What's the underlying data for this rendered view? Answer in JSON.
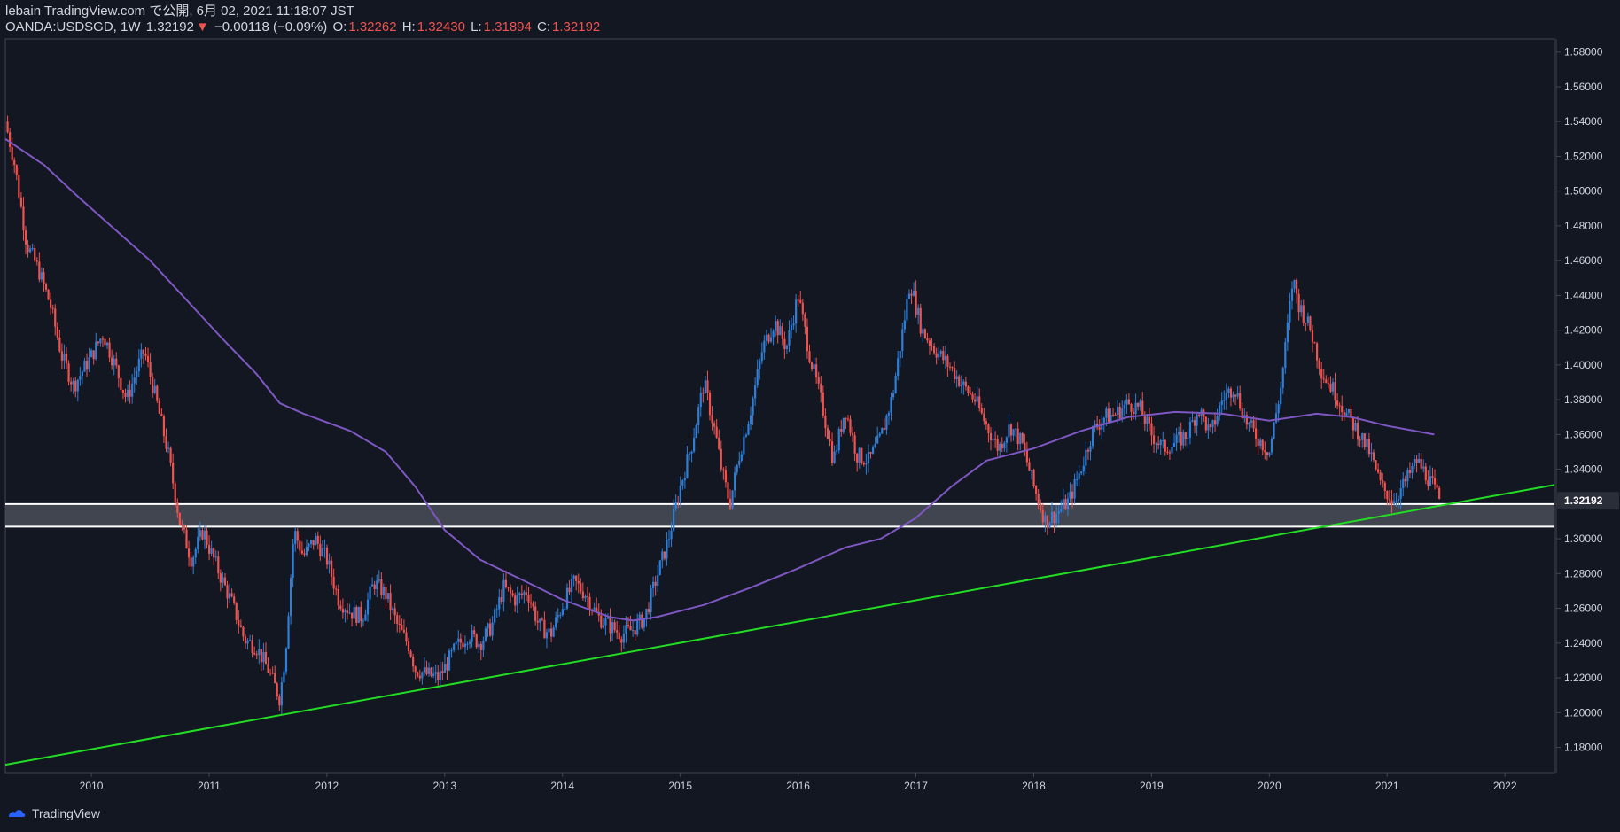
{
  "header": {
    "publisher": "lebain TradingView.com で公開, 6月 02, 2021 11:18:07 JST",
    "symbol": "OANDA:USDSGD, 1W",
    "last": "1.32192",
    "change_arrow": "▼",
    "change": "−0.00118 (−0.09%)",
    "o_label": "O:",
    "o_value": "1.32262",
    "h_label": "H:",
    "h_value": "1.32430",
    "l_label": "L:",
    "l_value": "1.31894",
    "c_label": "C:",
    "c_value": "1.32192"
  },
  "footer": {
    "brand": "TradingView"
  },
  "colors": {
    "background": "#131722",
    "up": "#2f7fd8",
    "down": "#ef5350",
    "ma": "#7e57c2",
    "trendline": "#22dd22",
    "zone_border": "#ffffff",
    "zone_fill": "#4a4d57"
  },
  "chart_data": {
    "type": "candlestick",
    "x_unit": "year",
    "xlim": [
      2009.27,
      2022.42
    ],
    "ylim": [
      1.1655,
      1.5875
    ],
    "x_ticks": [
      "2010",
      "2011",
      "2012",
      "2013",
      "2014",
      "2015",
      "2016",
      "2017",
      "2018",
      "2019",
      "2020",
      "2021",
      "2022"
    ],
    "x_tick_values": [
      2010,
      2011,
      2012,
      2013,
      2014,
      2015,
      2016,
      2017,
      2018,
      2019,
      2020,
      2021,
      2022
    ],
    "y_ticks": [
      "1.18000",
      "1.20000",
      "1.22000",
      "1.24000",
      "1.26000",
      "1.28000",
      "1.30000",
      "1.32000",
      "1.34000",
      "1.36000",
      "1.38000",
      "1.40000",
      "1.42000",
      "1.44000",
      "1.46000",
      "1.48000",
      "1.50000",
      "1.52000",
      "1.54000",
      "1.56000",
      "1.58000"
    ],
    "y_tick_values": [
      1.18,
      1.2,
      1.22,
      1.24,
      1.26,
      1.28,
      1.3,
      1.32,
      1.34,
      1.36,
      1.38,
      1.4,
      1.42,
      1.44,
      1.46,
      1.48,
      1.5,
      1.52,
      1.54,
      1.56,
      1.58
    ],
    "last_price_label": "1.32192",
    "last_price": 1.32192,
    "price_path": [
      [
        2009.27,
        1.54
      ],
      [
        2009.35,
        1.515
      ],
      [
        2009.45,
        1.47
      ],
      [
        2009.55,
        1.455
      ],
      [
        2009.65,
        1.435
      ],
      [
        2009.75,
        1.405
      ],
      [
        2009.85,
        1.388
      ],
      [
        2010.0,
        1.405
      ],
      [
        2010.1,
        1.418
      ],
      [
        2010.2,
        1.4
      ],
      [
        2010.3,
        1.38
      ],
      [
        2010.4,
        1.4
      ],
      [
        2010.45,
        1.408
      ],
      [
        2010.55,
        1.38
      ],
      [
        2010.65,
        1.35
      ],
      [
        2010.75,
        1.31
      ],
      [
        2010.85,
        1.288
      ],
      [
        2010.95,
        1.305
      ],
      [
        2011.0,
        1.295
      ],
      [
        2011.1,
        1.278
      ],
      [
        2011.2,
        1.262
      ],
      [
        2011.3,
        1.242
      ],
      [
        2011.4,
        1.238
      ],
      [
        2011.5,
        1.225
      ],
      [
        2011.6,
        1.208
      ],
      [
        2011.65,
        1.236
      ],
      [
        2011.72,
        1.305
      ],
      [
        2011.8,
        1.29
      ],
      [
        2011.9,
        1.3
      ],
      [
        2012.0,
        1.288
      ],
      [
        2012.1,
        1.265
      ],
      [
        2012.2,
        1.258
      ],
      [
        2012.3,
        1.255
      ],
      [
        2012.4,
        1.275
      ],
      [
        2012.5,
        1.268
      ],
      [
        2012.6,
        1.25
      ],
      [
        2012.7,
        1.238
      ],
      [
        2012.75,
        1.225
      ],
      [
        2012.85,
        1.222
      ],
      [
        2012.95,
        1.22
      ],
      [
        2013.1,
        1.238
      ],
      [
        2013.2,
        1.245
      ],
      [
        2013.3,
        1.24
      ],
      [
        2013.4,
        1.25
      ],
      [
        2013.5,
        1.272
      ],
      [
        2013.6,
        1.265
      ],
      [
        2013.7,
        1.27
      ],
      [
        2013.8,
        1.25
      ],
      [
        2013.9,
        1.245
      ],
      [
        2014.0,
        1.262
      ],
      [
        2014.1,
        1.275
      ],
      [
        2014.2,
        1.268
      ],
      [
        2014.3,
        1.255
      ],
      [
        2014.4,
        1.25
      ],
      [
        2014.5,
        1.245
      ],
      [
        2014.6,
        1.248
      ],
      [
        2014.7,
        1.255
      ],
      [
        2014.8,
        1.278
      ],
      [
        2014.9,
        1.3
      ],
      [
        2015.0,
        1.33
      ],
      [
        2015.1,
        1.355
      ],
      [
        2015.2,
        1.39
      ],
      [
        2015.3,
        1.36
      ],
      [
        2015.35,
        1.34
      ],
      [
        2015.42,
        1.32
      ],
      [
        2015.5,
        1.348
      ],
      [
        2015.6,
        1.375
      ],
      [
        2015.7,
        1.41
      ],
      [
        2015.8,
        1.425
      ],
      [
        2015.9,
        1.41
      ],
      [
        2016.0,
        1.44
      ],
      [
        2016.1,
        1.405
      ],
      [
        2016.2,
        1.378
      ],
      [
        2016.3,
        1.345
      ],
      [
        2016.4,
        1.375
      ],
      [
        2016.5,
        1.348
      ],
      [
        2016.6,
        1.345
      ],
      [
        2016.7,
        1.358
      ],
      [
        2016.8,
        1.382
      ],
      [
        2016.9,
        1.425
      ],
      [
        2016.95,
        1.448
      ],
      [
        2017.05,
        1.42
      ],
      [
        2017.15,
        1.41
      ],
      [
        2017.3,
        1.398
      ],
      [
        2017.4,
        1.388
      ],
      [
        2017.5,
        1.38
      ],
      [
        2017.6,
        1.365
      ],
      [
        2017.7,
        1.352
      ],
      [
        2017.8,
        1.365
      ],
      [
        2017.9,
        1.355
      ],
      [
        2018.0,
        1.33
      ],
      [
        2018.1,
        1.31
      ],
      [
        2018.2,
        1.315
      ],
      [
        2018.3,
        1.322
      ],
      [
        2018.4,
        1.34
      ],
      [
        2018.5,
        1.362
      ],
      [
        2018.6,
        1.37
      ],
      [
        2018.7,
        1.372
      ],
      [
        2018.8,
        1.378
      ],
      [
        2018.9,
        1.375
      ],
      [
        2019.0,
        1.36
      ],
      [
        2019.1,
        1.352
      ],
      [
        2019.2,
        1.355
      ],
      [
        2019.3,
        1.36
      ],
      [
        2019.4,
        1.375
      ],
      [
        2019.5,
        1.36
      ],
      [
        2019.6,
        1.38
      ],
      [
        2019.7,
        1.388
      ],
      [
        2019.8,
        1.368
      ],
      [
        2019.9,
        1.358
      ],
      [
        2020.0,
        1.35
      ],
      [
        2020.1,
        1.388
      ],
      [
        2020.2,
        1.45
      ],
      [
        2020.25,
        1.435
      ],
      [
        2020.35,
        1.42
      ],
      [
        2020.45,
        1.395
      ],
      [
        2020.55,
        1.385
      ],
      [
        2020.65,
        1.372
      ],
      [
        2020.75,
        1.362
      ],
      [
        2020.85,
        1.35
      ],
      [
        2020.95,
        1.33
      ],
      [
        2021.05,
        1.322
      ],
      [
        2021.15,
        1.332
      ],
      [
        2021.25,
        1.345
      ],
      [
        2021.35,
        1.335
      ],
      [
        2021.45,
        1.322
      ]
    ],
    "series": [
      {
        "type": "moving_average",
        "points": [
          [
            2009.27,
            1.53
          ],
          [
            2009.6,
            1.515
          ],
          [
            2009.9,
            1.496
          ],
          [
            2010.2,
            1.478
          ],
          [
            2010.5,
            1.46
          ],
          [
            2010.8,
            1.438
          ],
          [
            2011.1,
            1.416
          ],
          [
            2011.4,
            1.395
          ],
          [
            2011.6,
            1.378
          ],
          [
            2011.8,
            1.372
          ],
          [
            2012.2,
            1.362
          ],
          [
            2012.5,
            1.35
          ],
          [
            2012.75,
            1.33
          ],
          [
            2013.0,
            1.305
          ],
          [
            2013.3,
            1.288
          ],
          [
            2013.7,
            1.275
          ],
          [
            2014.0,
            1.265
          ],
          [
            2014.4,
            1.255
          ],
          [
            2014.6,
            1.253
          ],
          [
            2014.8,
            1.255
          ],
          [
            2015.2,
            1.262
          ],
          [
            2015.6,
            1.272
          ],
          [
            2016.0,
            1.283
          ],
          [
            2016.4,
            1.295
          ],
          [
            2016.7,
            1.3
          ],
          [
            2017.0,
            1.312
          ],
          [
            2017.3,
            1.33
          ],
          [
            2017.6,
            1.345
          ],
          [
            2018.0,
            1.352
          ],
          [
            2018.4,
            1.362
          ],
          [
            2018.8,
            1.37
          ],
          [
            2019.2,
            1.373
          ],
          [
            2019.6,
            1.372
          ],
          [
            2020.0,
            1.368
          ],
          [
            2020.4,
            1.372
          ],
          [
            2020.7,
            1.37
          ],
          [
            2021.0,
            1.365
          ],
          [
            2021.4,
            1.36
          ]
        ]
      },
      {
        "type": "trendline",
        "points": [
          [
            2009.27,
            1.17
          ],
          [
            2022.42,
            1.331
          ]
        ]
      },
      {
        "type": "horizontal_zone",
        "y_top": 1.32,
        "y_bottom": 1.307
      }
    ]
  }
}
